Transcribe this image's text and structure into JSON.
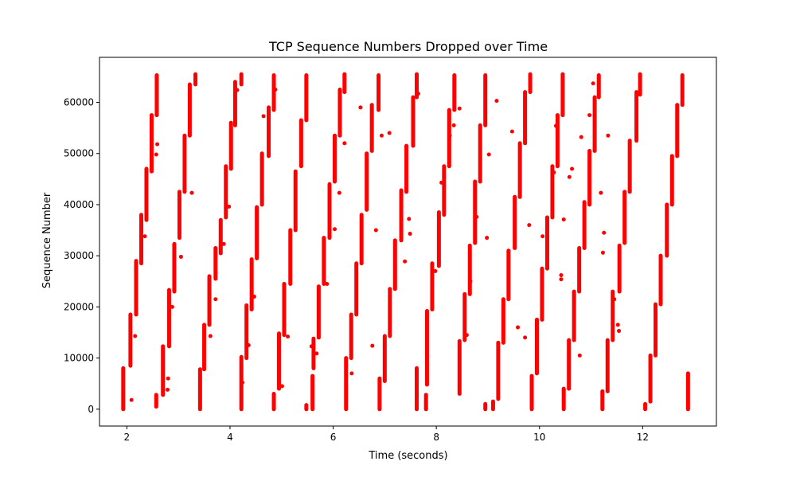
{
  "chart_data": {
    "type": "scatter",
    "title": "TCP Sequence Numbers Dropped over Time",
    "xlabel": "Time (seconds)",
    "ylabel": "Sequence Number",
    "xlim": [
      1.47,
      13.43
    ],
    "ylim": [
      -3300,
      68800
    ],
    "xticks": [
      2,
      4,
      6,
      8,
      10,
      12
    ],
    "yticks": [
      0,
      10000,
      20000,
      30000,
      40000,
      50000,
      60000
    ],
    "grid": false,
    "legend": "none",
    "marker_color": "#ff0000",
    "segments": [
      [
        1.93,
        0,
        8000
      ],
      [
        2.07,
        8500,
        18500
      ],
      [
        2.18,
        18500,
        29000
      ],
      [
        2.28,
        28500,
        38000
      ],
      [
        2.38,
        37000,
        47000
      ],
      [
        2.48,
        46500,
        57500
      ],
      [
        2.58,
        57500,
        65300
      ],
      [
        2.57,
        500,
        2800
      ],
      [
        2.7,
        2800,
        12300
      ],
      [
        2.82,
        12300,
        23300
      ],
      [
        2.92,
        23000,
        32300
      ],
      [
        3.02,
        33500,
        42500
      ],
      [
        3.12,
        42500,
        53500
      ],
      [
        3.22,
        53500,
        63500
      ],
      [
        3.33,
        63500,
        65500
      ],
      [
        3.42,
        0,
        7800
      ],
      [
        3.5,
        7800,
        16500
      ],
      [
        3.6,
        16500,
        26000
      ],
      [
        3.72,
        25500,
        31500
      ],
      [
        3.82,
        30500,
        37000
      ],
      [
        3.92,
        37500,
        47500
      ],
      [
        4.02,
        47000,
        56000
      ],
      [
        4.1,
        55500,
        64000
      ],
      [
        4.22,
        63500,
        65500
      ],
      [
        4.22,
        0,
        10200
      ],
      [
        4.32,
        10000,
        20300
      ],
      [
        4.42,
        19500,
        29300
      ],
      [
        4.52,
        29500,
        39500
      ],
      [
        4.62,
        40000,
        50000
      ],
      [
        4.75,
        49500,
        59000
      ],
      [
        4.85,
        58500,
        65300
      ],
      [
        4.85,
        0,
        3000
      ],
      [
        4.95,
        4000,
        14800
      ],
      [
        5.05,
        14500,
        24500
      ],
      [
        5.17,
        24500,
        35000
      ],
      [
        5.27,
        35000,
        46500
      ],
      [
        5.38,
        47500,
        56500
      ],
      [
        5.48,
        56500,
        65300
      ],
      [
        5.48,
        0,
        800
      ],
      [
        5.6,
        0,
        6500
      ],
      [
        5.62,
        8000,
        13800
      ],
      [
        5.72,
        14000,
        24000
      ],
      [
        5.82,
        24500,
        33500
      ],
      [
        5.93,
        33500,
        44000
      ],
      [
        6.03,
        44500,
        53500
      ],
      [
        6.13,
        53500,
        62500
      ],
      [
        6.22,
        62000,
        65500
      ],
      [
        6.25,
        0,
        10000
      ],
      [
        6.35,
        10000,
        18500
      ],
      [
        6.45,
        18500,
        28500
      ],
      [
        6.55,
        28500,
        38000
      ],
      [
        6.65,
        39000,
        50000
      ],
      [
        6.75,
        50500,
        59500
      ],
      [
        6.88,
        58500,
        65300
      ],
      [
        6.9,
        0,
        6000
      ],
      [
        7.0,
        5500,
        14300
      ],
      [
        7.1,
        14300,
        23500
      ],
      [
        7.2,
        23500,
        33000
      ],
      [
        7.32,
        33000,
        42800
      ],
      [
        7.42,
        42500,
        51500
      ],
      [
        7.55,
        51500,
        61000
      ],
      [
        7.62,
        61000,
        65500
      ],
      [
        7.62,
        0,
        8000
      ],
      [
        7.8,
        0,
        2800
      ],
      [
        7.82,
        4800,
        19200
      ],
      [
        7.92,
        19500,
        28500
      ],
      [
        8.05,
        28000,
        38500
      ],
      [
        8.15,
        38000,
        47500
      ],
      [
        8.25,
        47500,
        58500
      ],
      [
        8.35,
        58500,
        65300
      ],
      [
        8.45,
        3000,
        13300
      ],
      [
        8.55,
        13500,
        22500
      ],
      [
        8.65,
        22500,
        32000
      ],
      [
        8.75,
        32500,
        44500
      ],
      [
        8.85,
        44500,
        55500
      ],
      [
        8.95,
        55500,
        65300
      ],
      [
        8.95,
        0,
        1000
      ],
      [
        9.1,
        0,
        1500
      ],
      [
        9.2,
        2000,
        13000
      ],
      [
        9.3,
        13000,
        21500
      ],
      [
        9.4,
        21500,
        31000
      ],
      [
        9.52,
        31500,
        41500
      ],
      [
        9.62,
        41500,
        52000
      ],
      [
        9.72,
        52000,
        62000
      ],
      [
        9.82,
        62000,
        65500
      ],
      [
        9.85,
        0,
        6500
      ],
      [
        9.95,
        7000,
        17500
      ],
      [
        10.05,
        17500,
        27500
      ],
      [
        10.15,
        27500,
        37500
      ],
      [
        10.25,
        37500,
        47500
      ],
      [
        10.35,
        47500,
        57500
      ],
      [
        10.45,
        57500,
        65500
      ],
      [
        10.47,
        0,
        4000
      ],
      [
        10.57,
        4000,
        13500
      ],
      [
        10.67,
        13500,
        23000
      ],
      [
        10.77,
        23000,
        31500
      ],
      [
        10.87,
        31500,
        40500
      ],
      [
        10.97,
        40000,
        50500
      ],
      [
        11.07,
        50500,
        61000
      ],
      [
        11.15,
        61000,
        65300
      ],
      [
        11.22,
        0,
        3500
      ],
      [
        11.32,
        3500,
        13500
      ],
      [
        11.42,
        13500,
        23000
      ],
      [
        11.55,
        23000,
        32000
      ],
      [
        11.65,
        32500,
        42500
      ],
      [
        11.75,
        42500,
        52500
      ],
      [
        11.88,
        52500,
        62000
      ],
      [
        11.95,
        61500,
        65500
      ],
      [
        12.05,
        0,
        1000
      ],
      [
        12.15,
        1500,
        10500
      ],
      [
        12.25,
        10500,
        20500
      ],
      [
        12.35,
        20500,
        30000
      ],
      [
        12.47,
        30000,
        40000
      ],
      [
        12.57,
        40000,
        49500
      ],
      [
        12.67,
        49500,
        59500
      ],
      [
        12.77,
        59500,
        65300
      ],
      [
        12.88,
        0,
        7000
      ]
    ],
    "points": [
      [
        2.09,
        1800
      ],
      [
        2.16,
        14300
      ],
      [
        2.35,
        33800
      ],
      [
        2.57,
        49800
      ],
      [
        2.59,
        51800
      ],
      [
        2.79,
        3800
      ],
      [
        2.8,
        6000
      ],
      [
        2.88,
        20000
      ],
      [
        3.05,
        29800
      ],
      [
        3.26,
        42300
      ],
      [
        3.62,
        14300
      ],
      [
        3.72,
        21500
      ],
      [
        3.88,
        32300
      ],
      [
        3.98,
        39600
      ],
      [
        4.14,
        62400
      ],
      [
        4.24,
        5200
      ],
      [
        4.36,
        12500
      ],
      [
        4.47,
        22000
      ],
      [
        4.65,
        57300
      ],
      [
        4.88,
        62500
      ],
      [
        5.01,
        4500
      ],
      [
        5.12,
        14200
      ],
      [
        5.58,
        12300
      ],
      [
        5.68,
        10900
      ],
      [
        5.88,
        24500
      ],
      [
        6.03,
        35200
      ],
      [
        6.12,
        42300
      ],
      [
        6.22,
        52000
      ],
      [
        6.36,
        7000
      ],
      [
        6.53,
        59000
      ],
      [
        6.76,
        12400
      ],
      [
        6.83,
        35000
      ],
      [
        6.94,
        53500
      ],
      [
        7.09,
        54000
      ],
      [
        7.39,
        28900
      ],
      [
        7.47,
        37200
      ],
      [
        7.49,
        34300
      ],
      [
        7.55,
        54200
      ],
      [
        7.65,
        61700
      ],
      [
        7.98,
        27000
      ],
      [
        8.1,
        44300
      ],
      [
        8.26,
        53500
      ],
      [
        8.34,
        55500
      ],
      [
        8.45,
        58800
      ],
      [
        8.59,
        14500
      ],
      [
        8.66,
        25000
      ],
      [
        8.78,
        37600
      ],
      [
        8.98,
        33500
      ],
      [
        9.02,
        49800
      ],
      [
        9.1,
        1300
      ],
      [
        9.17,
        60300
      ],
      [
        9.47,
        54300
      ],
      [
        9.58,
        16000
      ],
      [
        9.72,
        14000
      ],
      [
        9.8,
        36000
      ],
      [
        10.06,
        33800
      ],
      [
        10.25,
        42300
      ],
      [
        10.28,
        46300
      ],
      [
        10.32,
        55400
      ],
      [
        10.42,
        26200
      ],
      [
        10.42,
        25400
      ],
      [
        10.47,
        37100
      ],
      [
        10.58,
        45400
      ],
      [
        10.63,
        47000
      ],
      [
        10.78,
        10500
      ],
      [
        10.81,
        53200
      ],
      [
        10.97,
        57500
      ],
      [
        11.04,
        63700
      ],
      [
        11.19,
        42300
      ],
      [
        11.23,
        30600
      ],
      [
        11.25,
        34500
      ],
      [
        11.33,
        53500
      ],
      [
        11.45,
        21500
      ],
      [
        11.52,
        16500
      ],
      [
        11.54,
        15300
      ]
    ]
  }
}
